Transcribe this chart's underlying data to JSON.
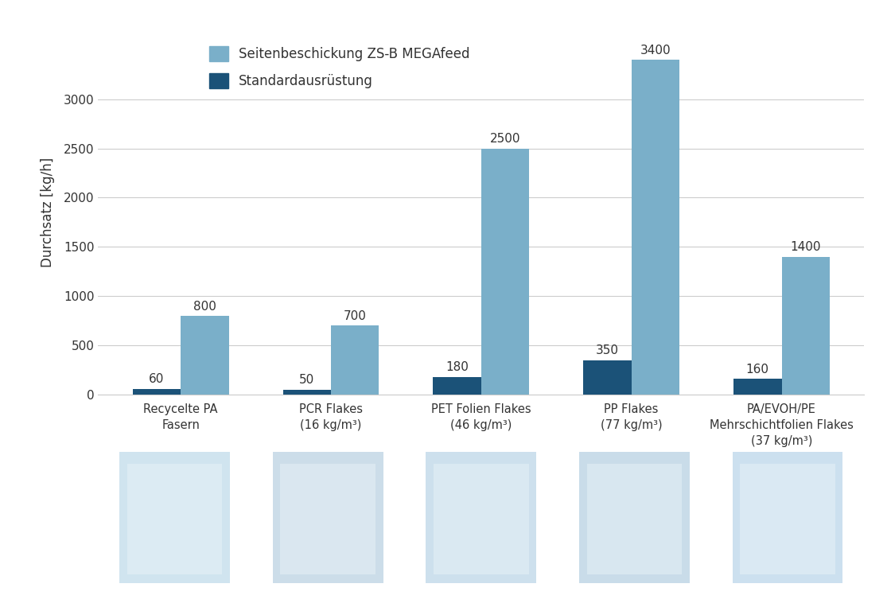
{
  "categories": [
    "Recycelte PA\nFasern",
    "PCR Flakes\n(16 kg/m³)",
    "PET Folien Flakes\n(46 kg/m³)",
    "PP Flakes\n(77 kg/m³)",
    "PA/EVOH/PE\nMehrschichtfolien Flakes\n(37 kg/m³)"
  ],
  "mega_values": [
    800,
    700,
    2500,
    3400,
    1400
  ],
  "std_values": [
    60,
    50,
    180,
    350,
    160
  ],
  "mega_color": "#7aafc9",
  "std_color": "#1b5278",
  "ylabel": "Durchsatz [kg/h]",
  "ylim": [
    0,
    3700
  ],
  "yticks": [
    0,
    500,
    1000,
    1500,
    2000,
    2500,
    3000
  ],
  "legend_mega": "Seitenbeschickung ZS-B MEGAfeed",
  "legend_std": "Standardausrüstung",
  "bar_width": 0.32,
  "bg_color": "#ffffff",
  "grid_color": "#cccccc",
  "text_color": "#333333",
  "label_fontsize": 10.5,
  "tick_fontsize": 11,
  "ylabel_fontsize": 12,
  "legend_fontsize": 12,
  "annot_fontsize": 11,
  "photo_colors": [
    "#d0e4ef",
    "#ccdde9",
    "#cde0ed",
    "#c9dce9",
    "#cce0ef"
  ],
  "photo_edge_color": "#b0c8d8"
}
